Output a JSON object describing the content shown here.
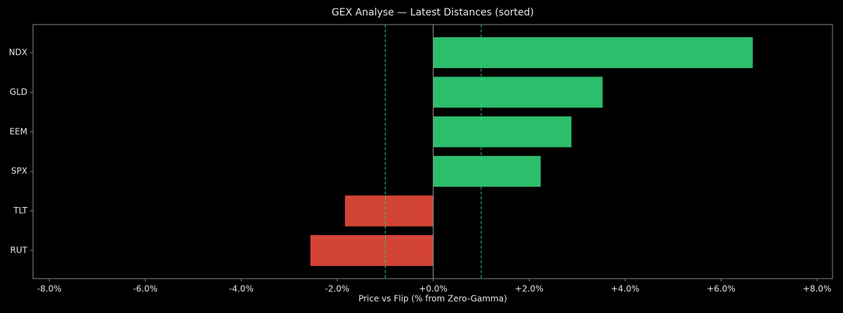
{
  "chart_data": {
    "type": "barh",
    "title": "GEX Analyse — Latest Distances (sorted)",
    "x_label": "Price vs Flip (% from Zero-Gamma)",
    "categories": [
      "NDX",
      "GLD",
      "EEM",
      "SPX",
      "TLT",
      "RUT"
    ],
    "values": [
      6.66,
      3.53,
      2.88,
      2.24,
      -1.84,
      -2.56
    ],
    "colors": [
      "#2dbe6c",
      "#2dbe6c",
      "#2dbe6c",
      "#2dbe6c",
      "#d24536",
      "#d24536"
    ],
    "xlim": [
      -8.34,
      8.32
    ],
    "xticks": [
      {
        "value": -8,
        "label": "-8.0%"
      },
      {
        "value": -6,
        "label": "-6.0%"
      },
      {
        "value": -4,
        "label": "-4.0%"
      },
      {
        "value": -2,
        "label": "-2.0%"
      },
      {
        "value": 0,
        "label": "+0.0%"
      },
      {
        "value": 2,
        "label": "+2.0%"
      },
      {
        "value": 4,
        "label": "+4.0%"
      },
      {
        "value": 6,
        "label": "+6.0%"
      },
      {
        "value": 8,
        "label": "+8.0%"
      }
    ],
    "ref_lines": [
      -1,
      1
    ],
    "ref_color": "#2ecc71",
    "zero_line": 0,
    "grid": false
  }
}
